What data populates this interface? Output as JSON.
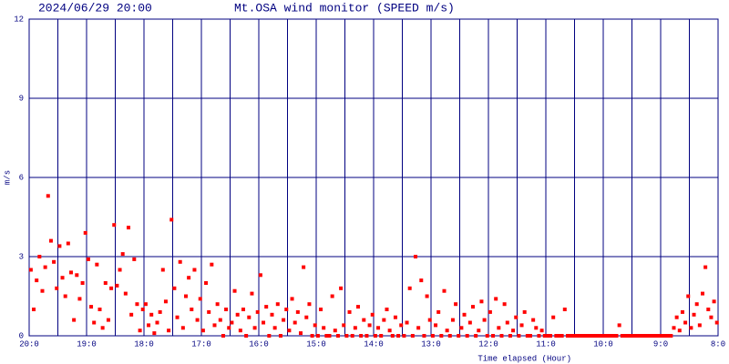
{
  "chart_data": {
    "type": "scatter",
    "date": "2024/06/29 20:00",
    "title": "Mt.OSA wind monitor (SPEED m/s)",
    "x_label": "Time elapsed (Hour)",
    "y_label": "m/s",
    "xlim": [
      0,
      12
    ],
    "xticks": [
      {
        "value": 0,
        "label": "20:0"
      },
      {
        "value": 1,
        "label": "19:0"
      },
      {
        "value": 2,
        "label": "18:0"
      },
      {
        "value": 3,
        "label": "17:0"
      },
      {
        "value": 4,
        "label": "16:0"
      },
      {
        "value": 5,
        "label": "15:0"
      },
      {
        "value": 6,
        "label": "14:0"
      },
      {
        "value": 7,
        "label": "13:0"
      },
      {
        "value": 8,
        "label": "12:0"
      },
      {
        "value": 9,
        "label": "11:0"
      },
      {
        "value": 10,
        "label": "10:0"
      },
      {
        "value": 11,
        "label": "9:0"
      },
      {
        "value": 12,
        "label": "8:0"
      }
    ],
    "x_minor_ticks": [
      0.5,
      1.5,
      2.5,
      3.5,
      4.5,
      5.5,
      6.5,
      7.5,
      8.5,
      9.5,
      10.5,
      11.5
    ],
    "ylim": [
      0,
      12
    ],
    "yticks": [
      0,
      3,
      6,
      9,
      12
    ],
    "grid": true,
    "series": [
      {
        "color": "#ff0000",
        "x": [
          0.03,
          0.08,
          0.13,
          0.18,
          0.23,
          0.28,
          0.33,
          0.38,
          0.43,
          0.48,
          0.53,
          0.58,
          0.63,
          0.68,
          0.73,
          0.78,
          0.83,
          0.88,
          0.93,
          0.98,
          1.03,
          1.08,
          1.13,
          1.18,
          1.23,
          1.28,
          1.33,
          1.38,
          1.43,
          1.48,
          1.53,
          1.58,
          1.63,
          1.68,
          1.73,
          1.78,
          1.83,
          1.88,
          1.93,
          1.98,
          2.03,
          2.08,
          2.13,
          2.18,
          2.23,
          2.28,
          2.33,
          2.38,
          2.43,
          2.48,
          2.53,
          2.58,
          2.63,
          2.68,
          2.73,
          2.78,
          2.83,
          2.88,
          2.93,
          2.98,
          3.03,
          3.08,
          3.13,
          3.18,
          3.23,
          3.28,
          3.33,
          3.38,
          3.43,
          3.48,
          3.53,
          3.58,
          3.63,
          3.68,
          3.73,
          3.78,
          3.83,
          3.88,
          3.93,
          3.98,
          4.03,
          4.08,
          4.13,
          4.18,
          4.23,
          4.28,
          4.33,
          4.38,
          4.43,
          4.48,
          4.53,
          4.58,
          4.63,
          4.68,
          4.73,
          4.78,
          4.83,
          4.88,
          4.93,
          4.98,
          5.03,
          5.08,
          5.13,
          5.18,
          5.23,
          5.28,
          5.33,
          5.38,
          5.43,
          5.48,
          5.53,
          5.58,
          5.63,
          5.68,
          5.73,
          5.78,
          5.83,
          5.88,
          5.93,
          5.98,
          6.03,
          6.08,
          6.13,
          6.18,
          6.23,
          6.28,
          6.33,
          6.38,
          6.43,
          6.48,
          6.53,
          6.58,
          6.63,
          6.68,
          6.73,
          6.78,
          6.83,
          6.88,
          6.93,
          6.98,
          7.03,
          7.08,
          7.13,
          7.18,
          7.23,
          7.28,
          7.33,
          7.38,
          7.43,
          7.48,
          7.53,
          7.58,
          7.63,
          7.68,
          7.73,
          7.78,
          7.83,
          7.88,
          7.93,
          7.98,
          8.03,
          8.08,
          8.13,
          8.18,
          8.23,
          8.28,
          8.33,
          8.38,
          8.43,
          8.48,
          8.53,
          8.58,
          8.63,
          8.68,
          8.73,
          8.78,
          8.83,
          8.88,
          8.93,
          8.98,
          9.03,
          9.08,
          9.13,
          9.18,
          9.23,
          9.28,
          9.33,
          9.38,
          9.43,
          9.48,
          9.53,
          9.58,
          9.63,
          9.68,
          9.73,
          9.78,
          9.83,
          9.88,
          9.93,
          9.98,
          10.03,
          10.08,
          10.13,
          10.18,
          10.23,
          10.28,
          10.33,
          10.38,
          10.43,
          10.48,
          10.53,
          10.58,
          10.63,
          10.68,
          10.73,
          10.78,
          10.83,
          10.88,
          10.93,
          10.98,
          11.03,
          11.08,
          11.13,
          11.18,
          11.23,
          11.28,
          11.33,
          11.38,
          11.43,
          11.48,
          11.53,
          11.58,
          11.63,
          11.68,
          11.73,
          11.78,
          11.83,
          11.88,
          11.93,
          11.98
        ],
        "values": [
          2.5,
          1.0,
          2.1,
          3.0,
          1.7,
          2.6,
          5.3,
          3.6,
          2.8,
          1.8,
          3.4,
          2.2,
          1.5,
          3.5,
          2.4,
          0.6,
          2.3,
          1.4,
          2.0,
          3.9,
          2.9,
          1.1,
          0.5,
          2.7,
          1.0,
          0.3,
          2.0,
          0.6,
          1.8,
          4.2,
          1.9,
          2.5,
          3.1,
          1.6,
          4.1,
          0.8,
          2.9,
          1.2,
          0.2,
          1.0,
          1.2,
          0.4,
          0.8,
          0.1,
          0.5,
          0.9,
          2.5,
          1.3,
          0.2,
          4.4,
          1.8,
          0.7,
          2.8,
          0.3,
          1.5,
          2.2,
          1.0,
          2.5,
          0.6,
          1.4,
          0.2,
          2.0,
          0.9,
          2.7,
          0.4,
          1.2,
          0.6,
          0.0,
          1.0,
          0.3,
          0.5,
          1.7,
          0.8,
          0.2,
          1.0,
          0.0,
          0.7,
          1.6,
          0.3,
          0.9,
          2.3,
          0.5,
          1.1,
          0.0,
          0.8,
          0.3,
          1.2,
          0.0,
          0.6,
          1.0,
          0.2,
          1.4,
          0.5,
          0.9,
          0.1,
          2.6,
          0.7,
          1.2,
          0.0,
          0.4,
          0.0,
          1.0,
          0.3,
          0.0,
          0.0,
          1.5,
          0.2,
          0.0,
          1.8,
          0.4,
          0.0,
          0.9,
          0.0,
          0.3,
          1.1,
          0.0,
          0.6,
          0.0,
          0.4,
          0.8,
          0.0,
          0.3,
          0.0,
          0.6,
          1.0,
          0.2,
          0.0,
          0.7,
          0.0,
          0.4,
          0.0,
          0.5,
          1.8,
          0.0,
          3.0,
          0.3,
          2.1,
          0.0,
          1.5,
          0.6,
          0.0,
          0.4,
          0.9,
          0.0,
          1.7,
          0.2,
          0.0,
          0.6,
          1.2,
          0.0,
          0.3,
          0.8,
          0.0,
          0.5,
          1.1,
          0.0,
          0.2,
          1.3,
          0.6,
          0.0,
          0.9,
          0.0,
          1.4,
          0.3,
          0.0,
          1.2,
          0.5,
          0.0,
          0.2,
          0.7,
          0.0,
          0.4,
          0.9,
          0.0,
          0.0,
          0.6,
          0.3,
          0.0,
          0.2,
          0.0,
          0.0,
          0.0,
          0.7,
          0.0,
          0.0,
          0.0,
          1.0,
          0.0,
          0.0,
          0.0,
          0.0,
          0.0,
          0.0,
          0.0,
          0.0,
          0.0,
          0.0,
          0.0,
          0.0,
          0.0,
          0.0,
          0.0,
          0.0,
          0.0,
          0.0,
          0.4,
          0.0,
          0.0,
          0.0,
          0.0,
          0.0,
          0.0,
          0.0,
          0.0,
          0.0,
          0.0,
          0.0,
          0.0,
          0.0,
          0.0,
          0.0,
          0.0,
          0.0,
          0.0,
          0.3,
          0.7,
          0.2,
          0.9,
          0.5,
          1.5,
          0.3,
          0.8,
          1.2,
          0.4,
          1.6,
          2.6,
          1.0,
          0.7,
          1.3,
          0.5
        ]
      }
    ]
  }
}
